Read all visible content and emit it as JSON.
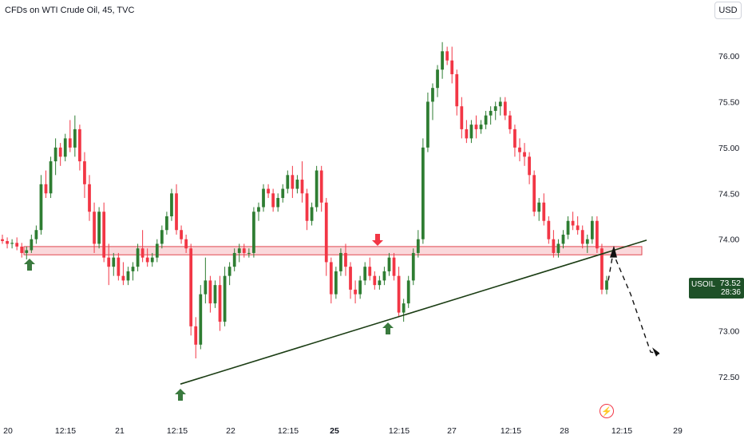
{
  "header": {
    "title": "CFDs on WTI Crude Oil, 45, TVC",
    "currency_button": "USD"
  },
  "price_tag": {
    "symbol": "USOIL",
    "price": "73.52",
    "countdown": "28:36",
    "color": "#1e5128"
  },
  "colors": {
    "up": "#2e7d32",
    "down": "#f23645",
    "zone_fill": "#f8c8cc",
    "zone_border": "#e0454f",
    "trendline": "#1b3d14",
    "arrow_up": "#3a7a3e",
    "arrow_down": "#f23645"
  },
  "chart_data": {
    "type": "candlestick",
    "title": "CFDs on WTI Crude Oil, 45, TVC",
    "y_axis": {
      "ticks": [
        "76.00",
        "75.50",
        "75.00",
        "74.50",
        "74.00",
        "73.50",
        "73.00",
        "72.50"
      ],
      "range": [
        72.25,
        76.7
      ]
    },
    "x_axis": {
      "ticks": [
        "20",
        "12:15",
        "21",
        "12:15",
        "22",
        "12:15",
        "25",
        "12:15",
        "27",
        "12:15",
        "28",
        "12:15",
        "29"
      ],
      "bold_ticks": [
        "25"
      ]
    },
    "last_price": 73.52,
    "candles": [
      [
        74.0,
        74.05,
        73.95,
        73.98
      ],
      [
        73.98,
        74.02,
        73.9,
        73.95
      ],
      [
        73.95,
        74.0,
        73.9,
        73.96
      ],
      [
        73.96,
        74.02,
        73.88,
        73.92
      ],
      [
        73.92,
        73.96,
        73.8,
        73.85
      ],
      [
        73.85,
        73.92,
        73.78,
        73.88
      ],
      [
        73.88,
        74.05,
        73.85,
        74.0
      ],
      [
        74.0,
        74.15,
        73.95,
        74.1
      ],
      [
        74.1,
        74.7,
        74.05,
        74.6
      ],
      [
        74.6,
        74.75,
        74.45,
        74.5
      ],
      [
        74.5,
        74.9,
        74.45,
        74.85
      ],
      [
        74.85,
        75.1,
        74.7,
        75.0
      ],
      [
        75.0,
        75.05,
        74.8,
        74.9
      ],
      [
        74.9,
        75.15,
        74.85,
        75.1
      ],
      [
        75.1,
        75.3,
        74.95,
        75.0
      ],
      [
        75.0,
        75.35,
        74.9,
        75.2
      ],
      [
        75.2,
        75.25,
        74.75,
        74.85
      ],
      [
        74.85,
        74.95,
        74.45,
        74.6
      ],
      [
        74.6,
        74.7,
        74.2,
        74.3
      ],
      [
        74.3,
        74.4,
        73.85,
        73.95
      ],
      [
        73.95,
        74.35,
        73.9,
        74.3
      ],
      [
        74.3,
        74.4,
        73.75,
        73.8
      ],
      [
        73.8,
        73.95,
        73.5,
        73.7
      ],
      [
        73.7,
        73.85,
        73.6,
        73.8
      ],
      [
        73.8,
        73.85,
        73.55,
        73.6
      ],
      [
        73.6,
        73.75,
        73.5,
        73.55
      ],
      [
        73.55,
        73.7,
        73.5,
        73.65
      ],
      [
        73.65,
        73.75,
        73.55,
        73.7
      ],
      [
        73.7,
        73.95,
        73.65,
        73.9
      ],
      [
        73.9,
        74.1,
        73.75,
        73.8
      ],
      [
        73.8,
        73.9,
        73.7,
        73.75
      ],
      [
        73.75,
        73.85,
        73.7,
        73.8
      ],
      [
        73.8,
        74.0,
        73.75,
        73.95
      ],
      [
        73.95,
        74.15,
        73.9,
        74.1
      ],
      [
        74.1,
        74.3,
        74.05,
        74.25
      ],
      [
        74.25,
        74.55,
        74.2,
        74.5
      ],
      [
        74.5,
        74.6,
        74.05,
        74.1
      ],
      [
        74.1,
        74.15,
        73.95,
        74.0
      ],
      [
        74.0,
        74.05,
        73.85,
        73.9
      ],
      [
        73.9,
        73.95,
        72.95,
        73.05
      ],
      [
        73.05,
        73.15,
        72.7,
        72.85
      ],
      [
        72.85,
        73.5,
        72.8,
        73.4
      ],
      [
        73.4,
        73.8,
        73.3,
        73.55
      ],
      [
        73.55,
        73.6,
        73.2,
        73.3
      ],
      [
        73.3,
        73.55,
        73.25,
        73.5
      ],
      [
        73.5,
        73.6,
        73.0,
        73.1
      ],
      [
        73.1,
        73.7,
        73.05,
        73.6
      ],
      [
        73.6,
        73.75,
        73.5,
        73.7
      ],
      [
        73.7,
        73.9,
        73.65,
        73.85
      ],
      [
        73.85,
        73.95,
        73.75,
        73.9
      ],
      [
        73.9,
        73.95,
        73.8,
        73.85
      ],
      [
        73.85,
        73.9,
        73.8,
        73.85
      ],
      [
        73.85,
        74.35,
        73.8,
        74.3
      ],
      [
        74.3,
        74.4,
        74.2,
        74.35
      ],
      [
        74.35,
        74.6,
        74.3,
        74.55
      ],
      [
        74.55,
        74.6,
        74.45,
        74.5
      ],
      [
        74.5,
        74.55,
        74.3,
        74.35
      ],
      [
        74.35,
        74.5,
        74.3,
        74.45
      ],
      [
        74.45,
        74.6,
        74.4,
        74.55
      ],
      [
        74.55,
        74.75,
        74.5,
        74.7
      ],
      [
        74.7,
        74.8,
        74.45,
        74.55
      ],
      [
        74.55,
        74.7,
        74.5,
        74.65
      ],
      [
        74.65,
        74.85,
        74.4,
        74.5
      ],
      [
        74.5,
        74.55,
        74.1,
        74.2
      ],
      [
        74.2,
        74.4,
        74.15,
        74.35
      ],
      [
        74.35,
        74.8,
        74.3,
        74.75
      ],
      [
        74.75,
        74.8,
        74.3,
        74.4
      ],
      [
        74.4,
        74.45,
        73.6,
        73.75
      ],
      [
        73.75,
        73.8,
        73.3,
        73.4
      ],
      [
        73.4,
        73.7,
        73.35,
        73.65
      ],
      [
        73.65,
        73.9,
        73.6,
        73.85
      ],
      [
        73.85,
        73.95,
        73.6,
        73.7
      ],
      [
        73.7,
        73.75,
        73.35,
        73.45
      ],
      [
        73.45,
        73.55,
        73.3,
        73.4
      ],
      [
        73.4,
        73.6,
        73.35,
        73.55
      ],
      [
        73.55,
        73.75,
        73.5,
        73.7
      ],
      [
        73.7,
        73.8,
        73.55,
        73.6
      ],
      [
        73.6,
        73.65,
        73.45,
        73.5
      ],
      [
        73.5,
        73.6,
        73.45,
        73.55
      ],
      [
        73.55,
        73.7,
        73.5,
        73.65
      ],
      [
        73.65,
        73.85,
        73.6,
        73.8
      ],
      [
        73.8,
        73.85,
        73.55,
        73.6
      ],
      [
        73.6,
        73.7,
        73.15,
        73.2
      ],
      [
        73.2,
        73.35,
        73.1,
        73.3
      ],
      [
        73.3,
        73.6,
        73.25,
        73.55
      ],
      [
        73.55,
        73.9,
        73.5,
        73.85
      ],
      [
        73.85,
        74.1,
        73.8,
        74.0
      ],
      [
        74.0,
        75.1,
        73.95,
        75.0
      ],
      [
        75.0,
        75.6,
        74.95,
        75.5
      ],
      [
        75.5,
        75.7,
        75.3,
        75.65
      ],
      [
        75.65,
        75.9,
        75.55,
        75.85
      ],
      [
        75.85,
        76.15,
        75.75,
        76.05
      ],
      [
        76.05,
        76.1,
        75.9,
        75.95
      ],
      [
        75.95,
        76.1,
        75.7,
        75.8
      ],
      [
        75.8,
        75.85,
        75.35,
        75.45
      ],
      [
        75.45,
        75.55,
        75.1,
        75.2
      ],
      [
        75.2,
        75.3,
        75.05,
        75.1
      ],
      [
        75.1,
        75.3,
        75.05,
        75.25
      ],
      [
        75.25,
        75.35,
        75.1,
        75.2
      ],
      [
        75.2,
        75.3,
        75.15,
        75.25
      ],
      [
        75.25,
        75.4,
        75.2,
        75.35
      ],
      [
        75.35,
        75.45,
        75.25,
        75.4
      ],
      [
        75.4,
        75.5,
        75.3,
        75.45
      ],
      [
        75.45,
        75.55,
        75.35,
        75.5
      ],
      [
        75.5,
        75.55,
        75.3,
        75.35
      ],
      [
        75.35,
        75.4,
        75.15,
        75.2
      ],
      [
        75.2,
        75.25,
        74.9,
        75.0
      ],
      [
        75.0,
        75.1,
        74.85,
        74.95
      ],
      [
        74.95,
        75.05,
        74.8,
        74.9
      ],
      [
        74.9,
        74.95,
        74.6,
        74.7
      ],
      [
        74.7,
        74.75,
        74.25,
        74.3
      ],
      [
        74.3,
        74.45,
        74.2,
        74.4
      ],
      [
        74.4,
        74.5,
        74.15,
        74.2
      ],
      [
        74.2,
        74.25,
        73.95,
        74.0
      ],
      [
        74.0,
        74.1,
        73.8,
        73.85
      ],
      [
        73.85,
        74.0,
        73.8,
        73.95
      ],
      [
        73.95,
        74.1,
        73.9,
        74.05
      ],
      [
        74.05,
        74.25,
        74.0,
        74.2
      ],
      [
        74.2,
        74.3,
        74.1,
        74.15
      ],
      [
        74.15,
        74.25,
        74.05,
        74.1
      ],
      [
        74.1,
        74.15,
        73.9,
        73.95
      ],
      [
        73.95,
        74.05,
        73.85,
        74.0
      ],
      [
        74.0,
        74.25,
        73.95,
        74.2
      ],
      [
        74.2,
        74.25,
        73.85,
        73.9
      ],
      [
        73.9,
        73.95,
        73.4,
        73.45
      ],
      [
        73.45,
        73.6,
        73.4,
        73.55
      ]
    ],
    "annotations": {
      "support_zone": [
        73.83,
        73.92
      ],
      "trendline": {
        "from": [
          "12:15 (day 21)",
          72.42
        ],
        "to": [
          "projected",
          73.99
        ]
      },
      "arrows_up": 3,
      "arrows_down": 1,
      "projection": "dashed path from last candle up to ~73.85 then down to ~72.75"
    }
  }
}
